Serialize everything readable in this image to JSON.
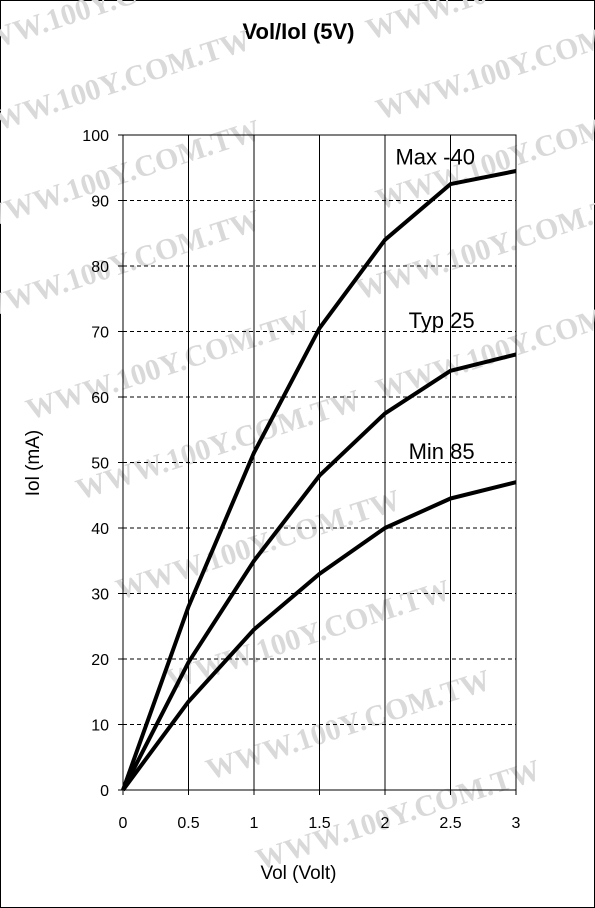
{
  "chart_data": {
    "type": "line",
    "title": "Vol/Iol (5V)",
    "xlabel": "Vol (Volt)",
    "ylabel": "Iol (mA)",
    "xlim": [
      0,
      3
    ],
    "ylim": [
      0,
      100
    ],
    "x_ticks": [
      "0",
      "0.5",
      "1",
      "1.5",
      "2",
      "2.5",
      "3"
    ],
    "y_ticks": [
      "0",
      "10",
      "20",
      "30",
      "40",
      "50",
      "60",
      "70",
      "80",
      "90",
      "100"
    ],
    "grid": {
      "vertical": "solid",
      "horizontal": "dashed"
    },
    "x": [
      0,
      0.5,
      1,
      1.5,
      2,
      2.5,
      3
    ],
    "series": [
      {
        "name": "Max -40",
        "values": [
          0,
          28,
          51.5,
          70.5,
          84,
          92.5,
          94.5
        ]
      },
      {
        "name": "Typ 25",
        "values": [
          0,
          19.5,
          35,
          48,
          57.5,
          64,
          66.5
        ]
      },
      {
        "name": "Min 85",
        "values": [
          0,
          13.5,
          24.5,
          33,
          40,
          44.5,
          47
        ]
      }
    ],
    "line_color": "#000000"
  },
  "watermark": "WWW.100Y.COM.TW"
}
